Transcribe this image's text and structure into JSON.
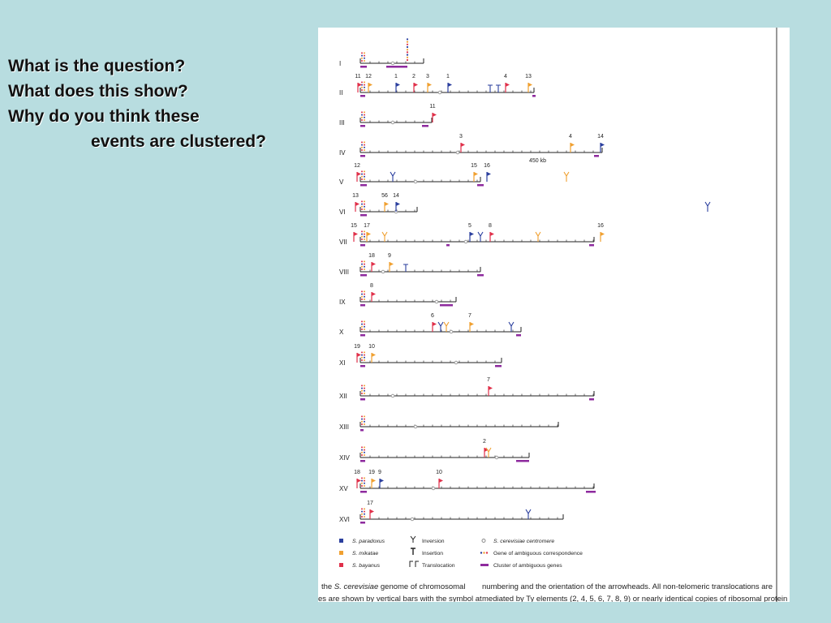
{
  "slide": {
    "questions": [
      "What is the question?",
      "What does this show?",
      "Why do you think these",
      "events are clustered?"
    ]
  },
  "colors": {
    "background": "#b8dde0",
    "paradoxus": "#2b3f9e",
    "mikatae": "#f0a030",
    "bayanus": "#e0304a",
    "cluster": "#8e2a9e",
    "centromere": "#8a8a8a"
  },
  "figure": {
    "chromosomes": [
      {
        "name": "I",
        "labels": []
      },
      {
        "name": "II",
        "labels": [
          "11",
          "12",
          "1",
          "2",
          "3",
          "1",
          "4",
          "13"
        ]
      },
      {
        "name": "III",
        "labels": [
          "11"
        ]
      },
      {
        "name": "IV",
        "labels": [
          "3",
          "4",
          "14"
        ],
        "note": "450 kb"
      },
      {
        "name": "V",
        "labels": [
          "12",
          "15",
          "16"
        ]
      },
      {
        "name": "VI",
        "labels": [
          "13",
          "56",
          "14"
        ]
      },
      {
        "name": "VII",
        "labels": [
          "15",
          "17",
          "5",
          "8",
          "16"
        ]
      },
      {
        "name": "VIII",
        "labels": [
          "18",
          "9"
        ]
      },
      {
        "name": "IX",
        "labels": [
          "8"
        ]
      },
      {
        "name": "X",
        "labels": [
          "6",
          "7"
        ]
      },
      {
        "name": "XI",
        "labels": [
          "19",
          "10"
        ]
      },
      {
        "name": "XII",
        "labels": [
          "7"
        ]
      },
      {
        "name": "XIII",
        "labels": []
      },
      {
        "name": "XIV",
        "labels": [
          "2"
        ]
      },
      {
        "name": "XV",
        "labels": [
          "18",
          "19",
          "9",
          "10"
        ]
      },
      {
        "name": "XVI",
        "labels": [
          "17"
        ]
      }
    ],
    "legend": [
      {
        "label": "S. paradoxus",
        "icon": "square-blue"
      },
      {
        "label": "S. mikatae",
        "icon": "square-orange"
      },
      {
        "label": "S. bayanus",
        "icon": "square-red"
      },
      {
        "label": "Inversion",
        "icon": "inversion-symbol"
      },
      {
        "label": "Insertion",
        "icon": "insertion-symbol"
      },
      {
        "label": "Translocation",
        "icon": "translocation-symbol"
      },
      {
        "label": "S. cerevisiae centromere",
        "icon": "centromere-dot"
      },
      {
        "label": "Gene of ambiguous correspondence",
        "icon": "colored-dots"
      },
      {
        "label": "Cluster of ambiguous genes",
        "icon": "purple-bar"
      }
    ],
    "caption": {
      "left_line1_prefix": "the ",
      "left_line1_italic": "S. cerevisiae",
      "left_line1_suffix": " genome of chromosomal",
      "left_line2": "es are shown by vertical bars with the symbol at",
      "right_line1": "numbering and the orientation of the arrowheads. All non-telomeric translocations are",
      "right_line2": "mediated by Ty elements (2, 4, 5, 6, 7, 8, 9) or nearly identical copies of ribosomal protein"
    }
  }
}
